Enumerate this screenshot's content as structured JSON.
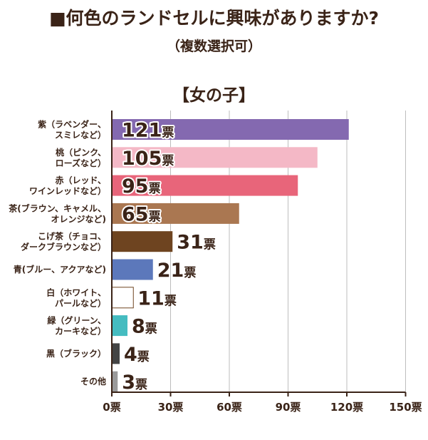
{
  "title": "■何色のランドセルに興味がありますか?",
  "subtitle": "（複数選択可）",
  "group_label": "【女の子】",
  "chart_data": {
    "type": "bar",
    "orientation": "horizontal",
    "categories": [
      [
        "紫（ラベンダー、",
        "スミレなど）"
      ],
      [
        "桃（ピンク、",
        "ローズなど）"
      ],
      [
        "赤（レッド、",
        "ワインレッドなど）"
      ],
      [
        "茶(ブラウン、キャメル、",
        "オレンジなど)"
      ],
      [
        "こげ茶（チョコ、",
        "ダークブラウンなど）"
      ],
      [
        "青(ブルー、アクアなど)"
      ],
      [
        "白（ホワイト、",
        "パールなど）"
      ],
      [
        "緑（グリーン、",
        "カーキなど）"
      ],
      [
        "黒（ブラック）"
      ],
      [
        "その他"
      ]
    ],
    "values": [
      121,
      105,
      95,
      65,
      31,
      21,
      11,
      8,
      4,
      3
    ],
    "value_unit": "票",
    "colors": [
      "#8469b0",
      "#f4b8c6",
      "#e8657a",
      "#aa7751",
      "#6e4420",
      "#5c78bb",
      "#ffffff",
      "#45bcc0",
      "#444444",
      "#9a9a9a"
    ],
    "xlim": [
      0,
      150
    ],
    "x_ticks": [
      "0票",
      "30票",
      "60票",
      "90票",
      "120票",
      "150票"
    ],
    "x_tick_values": [
      0,
      30,
      60,
      90,
      120,
      150
    ],
    "grid": true
  }
}
